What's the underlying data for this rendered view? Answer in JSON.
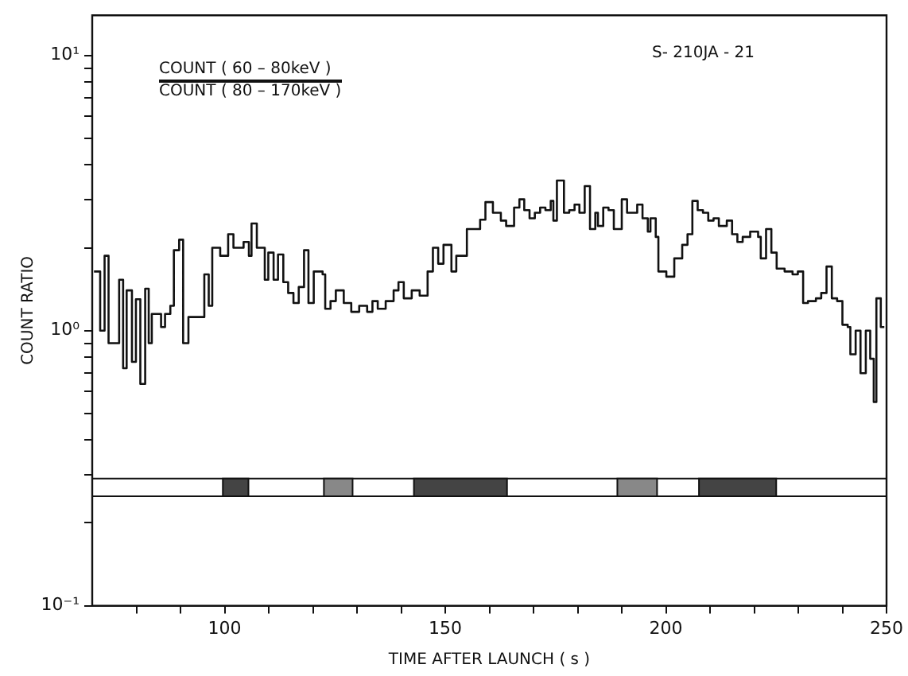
{
  "chart_data": {
    "type": "step",
    "xlabel": "TIME AFTER LAUNCH ( s )",
    "ylabel": "COUNT RATIO",
    "annotations": [
      "COUNT ( 60 – 80keV )",
      "COUNT ( 80 – 170keV )",
      "S- 210JA - 21"
    ],
    "log": "y",
    "grid": false,
    "legend": false,
    "marker": "none",
    "line_style": "solid",
    "xlim": [
      70,
      250
    ],
    "ylim": [
      0.1,
      14
    ],
    "xticks": [
      {
        "value": 80,
        "label": null
      },
      {
        "value": 90,
        "label": null
      },
      100,
      {
        "value": 110,
        "label": null
      },
      {
        "value": 120,
        "label": null
      },
      {
        "value": 130,
        "label": null
      },
      {
        "value": 140,
        "label": null
      },
      150,
      {
        "value": 160,
        "label": null
      },
      {
        "value": 170,
        "label": null
      },
      {
        "value": 180,
        "label": null
      },
      {
        "value": 190,
        "label": null
      },
      200,
      {
        "value": 210,
        "label": null
      },
      {
        "value": 220,
        "label": null
      },
      {
        "value": 230,
        "label": null
      },
      {
        "value": 240,
        "label": null
      },
      250
    ],
    "yticks": [
      {
        "value": 0.1,
        "label": "10⁻¹"
      },
      {
        "value": 0.2,
        "label": null
      },
      {
        "value": 0.3,
        "label": null
      },
      {
        "value": 0.4,
        "label": null
      },
      {
        "value": 0.5,
        "label": null
      },
      {
        "value": 0.6,
        "label": null
      },
      {
        "value": 0.7,
        "label": null
      },
      {
        "value": 0.8,
        "label": null
      },
      {
        "value": 0.9,
        "label": null
      },
      {
        "value": 1,
        "label": "10⁰"
      },
      {
        "value": 2,
        "label": null
      },
      {
        "value": 3,
        "label": null
      },
      {
        "value": 4,
        "label": null
      },
      {
        "value": 5,
        "label": null
      },
      {
        "value": 6,
        "label": null
      },
      {
        "value": 7,
        "label": null
      },
      {
        "value": 8,
        "label": null
      },
      {
        "value": 9,
        "label": null
      },
      {
        "value": 10,
        "label": "10¹"
      }
    ],
    "ref_lines": [
      {
        "axis": "y",
        "value": 0.29,
        "color": "#111111"
      },
      {
        "axis": "y",
        "value": 0.25,
        "color": "#111111"
      }
    ],
    "series": [
      {
        "type": "area",
        "color": "#444444",
        "x": [
          99.6,
          99.6,
          105.4,
          105.4
        ],
        "values": [
          0.25,
          0.29,
          0.29,
          0.25
        ]
      },
      {
        "type": "area",
        "color": "#888888",
        "x": [
          122.5,
          122.5,
          129,
          129
        ],
        "values": [
          0.25,
          0.29,
          0.29,
          0.25
        ]
      },
      {
        "type": "area",
        "color": "#444444",
        "x": [
          142.9,
          142.9,
          164,
          164
        ],
        "values": [
          0.25,
          0.29,
          0.29,
          0.25
        ]
      },
      {
        "type": "area",
        "color": "#888888",
        "x": [
          189,
          189,
          198,
          198
        ],
        "values": [
          0.25,
          0.29,
          0.29,
          0.25
        ]
      },
      {
        "type": "area",
        "color": "#444444",
        "x": [
          207.5,
          207.5,
          225,
          225
        ],
        "values": [
          0.25,
          0.29,
          0.29,
          0.25
        ]
      },
      {
        "color": "#111111",
        "x": [
          70.4,
          71.8,
          72.8,
          73.7,
          75.8,
          76.1,
          77,
          77.8,
          79,
          79.9,
          80.9,
          82,
          82.8,
          83.5,
          85.6,
          86.5,
          87.7,
          88.5,
          89.7,
          90.6,
          91.8,
          95.4,
          96.4,
          97.2,
          99,
          100.8,
          102,
          104.3,
          105.5,
          106.1,
          107.3,
          109.1,
          109.9,
          111.1,
          112.1,
          113.3,
          114.4,
          115.6,
          116.8,
          118,
          119,
          120.2,
          122.2,
          122.8,
          124,
          125.2,
          127,
          128.7,
          130.5,
          132.3,
          133.5,
          134.7,
          136.5,
          138.3,
          139.4,
          140.6,
          142.4,
          144.2,
          146,
          147.2,
          148.4,
          149.6,
          151.4,
          152.5,
          154.9,
          157.9,
          159.1,
          160.8,
          162.6,
          163.8,
          165.6,
          166.8,
          167.9,
          169.1,
          170.3,
          171.5,
          172.7,
          173.9,
          174.5,
          175.3,
          176.9,
          178.1,
          179.3,
          180.4,
          181.6,
          182.8,
          184,
          184.6,
          185.8,
          187,
          188.2,
          190,
          191.2,
          192.4,
          193.5,
          194.7,
          195.9,
          196.5,
          197.7,
          198.3,
          200.1,
          201.9,
          203.7,
          204.9,
          206,
          207.2,
          208.4,
          209.6,
          210.8,
          212,
          213.8,
          215,
          216.2,
          217.4,
          219.1,
          220.9,
          221.5,
          222.7,
          223.9,
          225.1,
          226.9,
          228.7,
          229.9,
          231.1,
          232.2,
          234,
          235.2,
          236.4,
          237.6,
          238.8,
          240,
          241.2,
          241.8,
          243,
          244.1,
          245.3,
          246.3,
          247.1,
          247.7,
          248.7,
          249.5
        ],
        "values": [
          1.64,
          1.0,
          1.87,
          0.9,
          0.9,
          1.53,
          0.73,
          1.4,
          0.77,
          1.3,
          0.64,
          1.42,
          0.9,
          1.15,
          1.03,
          1.15,
          1.23,
          1.96,
          2.14,
          0.9,
          1.12,
          1.6,
          1.23,
          2.0,
          1.87,
          2.24,
          2.0,
          2.1,
          1.87,
          2.45,
          2.0,
          1.53,
          1.92,
          1.53,
          1.89,
          1.5,
          1.37,
          1.26,
          1.44,
          1.96,
          1.26,
          1.64,
          1.6,
          1.2,
          1.28,
          1.4,
          1.26,
          1.17,
          1.23,
          1.17,
          1.28,
          1.2,
          1.28,
          1.4,
          1.5,
          1.31,
          1.4,
          1.34,
          1.64,
          2.0,
          1.75,
          2.05,
          1.64,
          1.87,
          2.34,
          2.53,
          2.93,
          2.68,
          2.51,
          2.4,
          2.8,
          3.0,
          2.74,
          2.56,
          2.68,
          2.8,
          2.74,
          2.96,
          2.51,
          3.51,
          2.68,
          2.74,
          2.87,
          2.68,
          3.35,
          2.34,
          2.68,
          2.4,
          2.8,
          2.74,
          2.34,
          3.0,
          2.68,
          2.68,
          2.87,
          2.56,
          2.29,
          2.56,
          2.19,
          1.64,
          1.57,
          1.83,
          2.05,
          2.24,
          2.96,
          2.74,
          2.68,
          2.51,
          2.56,
          2.4,
          2.51,
          2.24,
          2.1,
          2.19,
          2.29,
          2.19,
          1.83,
          2.34,
          1.92,
          1.68,
          1.64,
          1.6,
          1.64,
          1.26,
          1.28,
          1.31,
          1.37,
          1.71,
          1.31,
          1.28,
          1.05,
          1.03,
          0.82,
          1.0,
          0.7,
          1.0,
          0.79,
          0.55,
          1.31,
          1.03,
          1.03
        ]
      }
    ]
  }
}
